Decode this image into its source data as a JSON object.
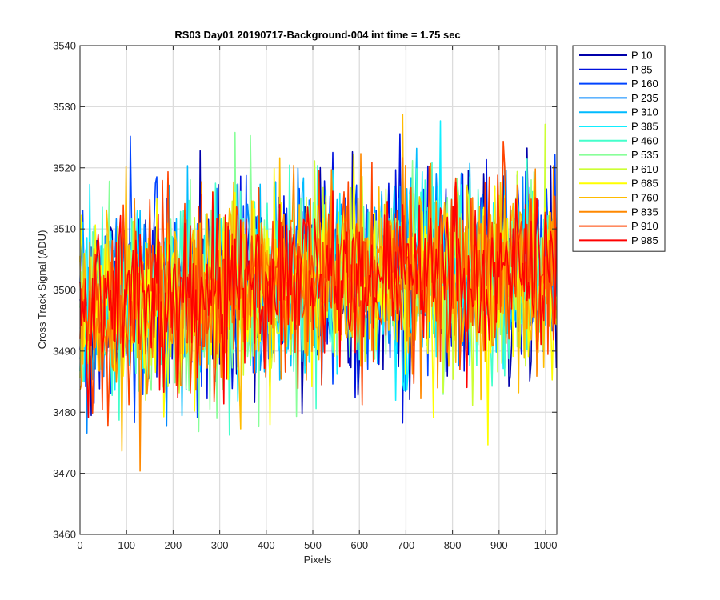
{
  "chart_data": {
    "type": "line",
    "title": "RS03 Day01 20190717-Background-004 int time = 1.75 sec",
    "xlabel": "Pixels",
    "ylabel": "Cross Track Signal (ADU)",
    "xlim": [
      0,
      1024
    ],
    "ylim": [
      3460,
      3540
    ],
    "xticks": [
      0,
      100,
      200,
      300,
      400,
      500,
      600,
      700,
      800,
      900,
      1000
    ],
    "yticks": [
      3460,
      3470,
      3480,
      3490,
      3500,
      3510,
      3520,
      3530,
      3540
    ],
    "grid": true,
    "legend_position": "outside-top-right",
    "noise": {
      "x_start": 0,
      "x_end": 1023,
      "mean_left": 3497,
      "mean_right": 3503,
      "typical_spread": 8,
      "min_observed": 3468,
      "max_observed": 3536
    },
    "series": [
      {
        "name": "P 10",
        "color": "#0000aa"
      },
      {
        "name": "P 85",
        "color": "#0011dd"
      },
      {
        "name": "P 160",
        "color": "#0044ff"
      },
      {
        "name": "P 235",
        "color": "#0088ff"
      },
      {
        "name": "P 310",
        "color": "#00bbff"
      },
      {
        "name": "P 385",
        "color": "#11eeff"
      },
      {
        "name": "P 460",
        "color": "#44ffcc"
      },
      {
        "name": "P 535",
        "color": "#88ff99"
      },
      {
        "name": "P 610",
        "color": "#ccff33"
      },
      {
        "name": "P 685",
        "color": "#ffff00"
      },
      {
        "name": "P 760",
        "color": "#ffbb00"
      },
      {
        "name": "P 835",
        "color": "#ff8800"
      },
      {
        "name": "P 910",
        "color": "#ff4400"
      },
      {
        "name": "P 985",
        "color": "#ff0000"
      }
    ]
  }
}
